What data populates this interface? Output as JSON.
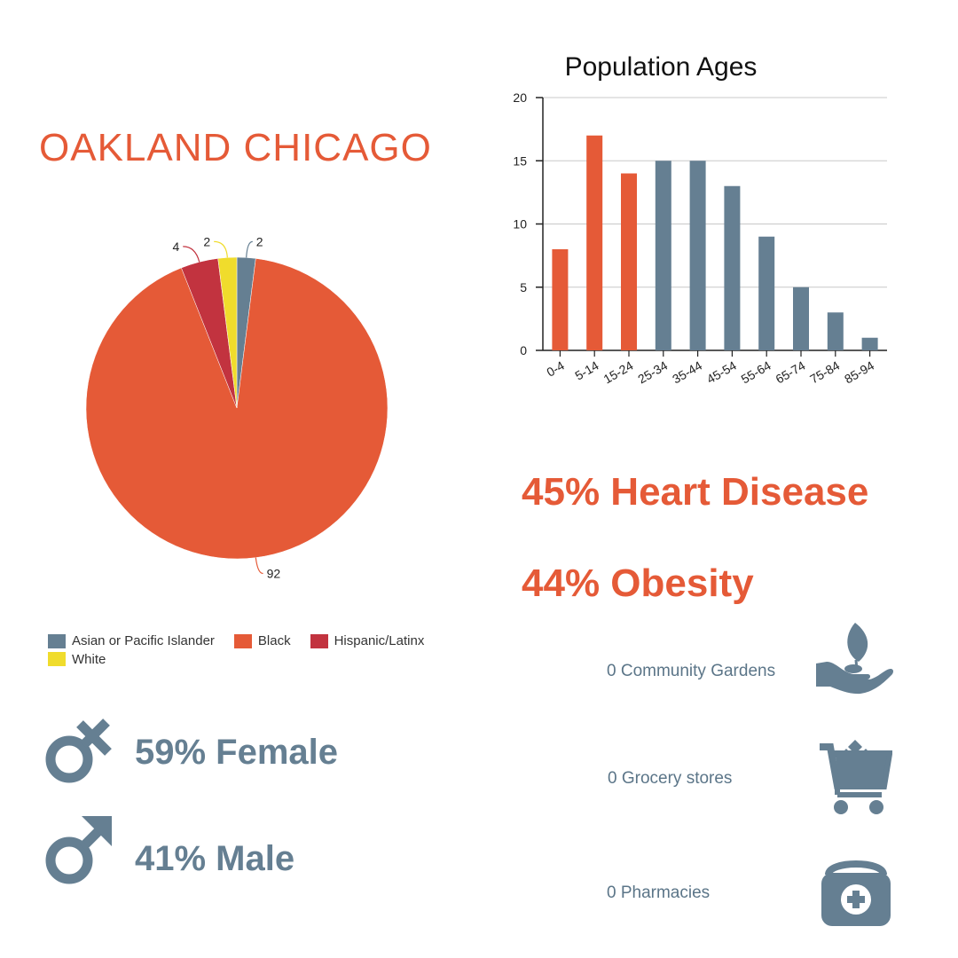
{
  "title": "OAKLAND CHICAGO",
  "colors": {
    "accent_red": "#e55a37",
    "slate": "#657f92",
    "crimson": "#c2333f",
    "yellow": "#f0dc2c"
  },
  "chart_data": [
    {
      "type": "pie",
      "slices": [
        {
          "name": "Asian or Pacific Islander",
          "value": 2,
          "color": "#657f92"
        },
        {
          "name": "Black",
          "value": 92,
          "color": "#e55a37"
        },
        {
          "name": "Hispanic/Latinx",
          "value": 4,
          "color": "#c2333f"
        },
        {
          "name": "White",
          "value": 2,
          "color": "#f0dc2c"
        }
      ],
      "legend_position": "bottom",
      "legend": [
        "Asian or Pacific Islander",
        "Black",
        "Hispanic/Latinx",
        "White"
      ]
    },
    {
      "type": "bar",
      "title": "Population Ages",
      "categories": [
        "0-4",
        "5-14",
        "15-24",
        "25-34",
        "35-44",
        "45-54",
        "55-64",
        "65-74",
        "75-84",
        "85-94"
      ],
      "values": [
        8,
        17,
        14,
        15,
        15,
        13,
        9,
        5,
        3,
        1
      ],
      "bar_colors": [
        "#e55a37",
        "#e55a37",
        "#e55a37",
        "#657f92",
        "#657f92",
        "#657f92",
        "#657f92",
        "#657f92",
        "#657f92",
        "#657f92"
      ],
      "ylim": [
        0,
        20
      ],
      "yticks": [
        0,
        5,
        10,
        15,
        20
      ],
      "grid": true
    }
  ],
  "stats": {
    "heart_disease": "45% Heart Disease",
    "obesity": "44% Obesity",
    "female": "59% Female",
    "male": "41% Male"
  },
  "resources": {
    "gardens": "0 Community Gardens",
    "grocery": "0 Grocery stores",
    "pharmacies": "0 Pharmacies"
  },
  "icons": {
    "female": "female-symbol-icon",
    "male": "male-symbol-icon",
    "garden": "plant-in-hand-icon",
    "grocery": "shopping-cart-icon",
    "pharmacy": "medical-kit-icon"
  }
}
